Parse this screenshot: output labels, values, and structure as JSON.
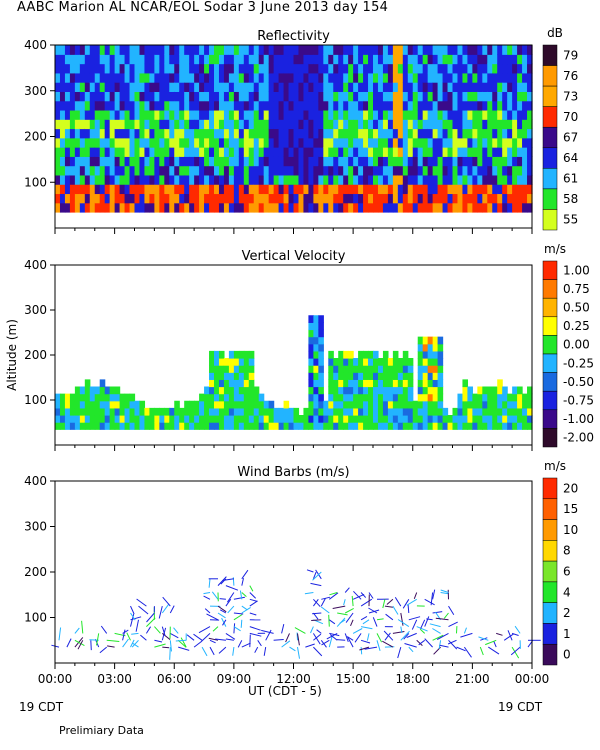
{
  "header": {
    "title": "AABC Marion AL NCAR/EOL Sodar    3 June 2013 day 154"
  },
  "footer": {
    "xlabel": "UT  (CDT - 5)",
    "left_date": "19 CDT",
    "right_date": "19 CDT",
    "note": "Prelimiary Data"
  },
  "chart_data": [
    {
      "type": "heatmap",
      "title": "Reflectivity",
      "unit": "dB",
      "ylabel": "",
      "ylim": [
        0,
        400
      ],
      "y_ticks": [
        "400",
        "300",
        "200",
        "100"
      ],
      "x_ticks": [
        "00:00",
        "03:00",
        "06:00",
        "09:00",
        "12:00",
        "15:00",
        "18:00",
        "21:00",
        "00:00"
      ],
      "xlim_hours": [
        0,
        24
      ],
      "data_ylim": [
        35,
        400
      ],
      "colorbar": {
        "labels": [
          "79",
          "76",
          "73",
          "70",
          "67",
          "64",
          "61",
          "58",
          "55"
        ],
        "colors": [
          "#2e0a2a",
          "#ff9a00",
          "#ffa800",
          "#ff2a00",
          "#3a0a8a",
          "#1a22e0",
          "#22b4ff",
          "#22e62a",
          "#d4ff1e"
        ],
        "note": "top-to-bottom"
      }
    },
    {
      "type": "heatmap",
      "title": "Vertical Velocity",
      "unit": "m/s",
      "ylabel": "Altitude (m)",
      "ylim": [
        0,
        400
      ],
      "y_ticks": [
        "400",
        "300",
        "200",
        "100"
      ],
      "x_ticks": [
        "00:00",
        "03:00",
        "06:00",
        "09:00",
        "12:00",
        "15:00",
        "18:00",
        "21:00",
        "00:00"
      ],
      "xlim_hours": [
        0,
        24
      ],
      "data_ylim": [
        35,
        320
      ],
      "colorbar": {
        "labels": [
          "1.00",
          "0.75",
          "0.50",
          "0.25",
          "0.00",
          "-0.25",
          "-0.50",
          "-0.75",
          "-1.00",
          "-2.00"
        ],
        "colors": [
          "#ff2a00",
          "#ff7a00",
          "#ffb400",
          "#ffff00",
          "#22e62a",
          "#22b4ff",
          "#1a6ae0",
          "#1a22e0",
          "#3a0a8a",
          "#2e0a2a"
        ],
        "note": "top-to-bottom"
      }
    },
    {
      "type": "scatter",
      "title": "Wind Barbs (m/s)",
      "unit": "m/s",
      "ylabel": "",
      "ylim": [
        0,
        400
      ],
      "y_ticks": [
        "400",
        "300",
        "200",
        "100"
      ],
      "x_ticks": [
        "00:00",
        "03:00",
        "06:00",
        "09:00",
        "12:00",
        "15:00",
        "18:00",
        "21:00",
        "00:00"
      ],
      "xlim_hours": [
        0,
        24
      ],
      "data_ylim": [
        30,
        220
      ],
      "colorbar": {
        "labels": [
          "20",
          "15",
          "10",
          "8",
          "6",
          "4",
          "2",
          "1",
          "0"
        ],
        "colors": [
          "#ff2a00",
          "#ff6000",
          "#ff9a00",
          "#ffd800",
          "#7ae62a",
          "#22e62a",
          "#22b4ff",
          "#1a22e0",
          "#3a0a5a"
        ],
        "note": "top-to-bottom"
      }
    }
  ]
}
